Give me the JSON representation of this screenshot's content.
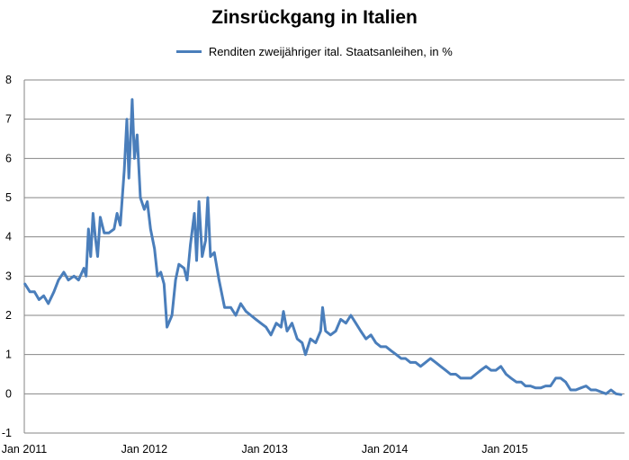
{
  "chart_data": {
    "type": "line",
    "title": "Zinsrückgang in Italien",
    "xlabel": "",
    "ylabel": "",
    "ylim": [
      -1,
      8
    ],
    "xlim": [
      "2011-01",
      "2015-12"
    ],
    "grid": true,
    "legend_position": "top-center",
    "y_ticks": [
      "8",
      "7",
      "6",
      "5",
      "4",
      "3",
      "2",
      "1",
      "0",
      "-1"
    ],
    "x_ticks": [
      "Jan 2011",
      "Jan 2012",
      "Jan 2013",
      "Jan 2014",
      "Jan 2015"
    ],
    "series": [
      {
        "name": "Renditen zweijähriger ital. Staatsanleihen, in %",
        "color": "#4a7ebb",
        "points": [
          [
            "2011-01-03",
            2.8
          ],
          [
            "2011-01-18",
            2.6
          ],
          [
            "2011-02-01",
            2.6
          ],
          [
            "2011-02-15",
            2.4
          ],
          [
            "2011-03-01",
            2.5
          ],
          [
            "2011-03-15",
            2.3
          ],
          [
            "2011-04-01",
            2.6
          ],
          [
            "2011-04-15",
            2.9
          ],
          [
            "2011-05-01",
            3.1
          ],
          [
            "2011-05-15",
            2.9
          ],
          [
            "2011-06-01",
            3.0
          ],
          [
            "2011-06-15",
            2.9
          ],
          [
            "2011-07-01",
            3.2
          ],
          [
            "2011-07-08",
            3.0
          ],
          [
            "2011-07-15",
            4.2
          ],
          [
            "2011-07-22",
            3.5
          ],
          [
            "2011-07-29",
            4.6
          ],
          [
            "2011-08-05",
            4.0
          ],
          [
            "2011-08-12",
            3.5
          ],
          [
            "2011-08-20",
            4.5
          ],
          [
            "2011-09-01",
            4.1
          ],
          [
            "2011-09-15",
            4.1
          ],
          [
            "2011-10-01",
            4.2
          ],
          [
            "2011-10-10",
            4.6
          ],
          [
            "2011-10-20",
            4.3
          ],
          [
            "2011-11-01",
            5.7
          ],
          [
            "2011-11-09",
            7.0
          ],
          [
            "2011-11-15",
            5.5
          ],
          [
            "2011-11-25",
            7.5
          ],
          [
            "2011-12-02",
            6.0
          ],
          [
            "2011-12-10",
            6.6
          ],
          [
            "2011-12-20",
            5.0
          ],
          [
            "2012-01-01",
            4.7
          ],
          [
            "2012-01-10",
            4.9
          ],
          [
            "2012-01-20",
            4.2
          ],
          [
            "2012-02-01",
            3.7
          ],
          [
            "2012-02-10",
            3.0
          ],
          [
            "2012-02-20",
            3.1
          ],
          [
            "2012-03-01",
            2.8
          ],
          [
            "2012-03-10",
            1.7
          ],
          [
            "2012-03-25",
            2.0
          ],
          [
            "2012-04-05",
            2.9
          ],
          [
            "2012-04-15",
            3.3
          ],
          [
            "2012-05-01",
            3.2
          ],
          [
            "2012-05-10",
            2.9
          ],
          [
            "2012-05-20",
            3.8
          ],
          [
            "2012-06-01",
            4.6
          ],
          [
            "2012-06-08",
            3.4
          ],
          [
            "2012-06-15",
            4.9
          ],
          [
            "2012-06-25",
            3.5
          ],
          [
            "2012-07-05",
            3.9
          ],
          [
            "2012-07-12",
            5.0
          ],
          [
            "2012-07-20",
            3.5
          ],
          [
            "2012-08-01",
            3.6
          ],
          [
            "2012-08-15",
            2.9
          ],
          [
            "2012-09-01",
            2.2
          ],
          [
            "2012-09-20",
            2.2
          ],
          [
            "2012-10-05",
            2.0
          ],
          [
            "2012-10-20",
            2.3
          ],
          [
            "2012-11-05",
            2.1
          ],
          [
            "2012-11-20",
            2.0
          ],
          [
            "2012-12-05",
            1.9
          ],
          [
            "2012-12-20",
            1.8
          ],
          [
            "2013-01-05",
            1.7
          ],
          [
            "2013-01-20",
            1.5
          ],
          [
            "2013-02-05",
            1.8
          ],
          [
            "2013-02-20",
            1.7
          ],
          [
            "2013-02-27",
            2.1
          ],
          [
            "2013-03-10",
            1.6
          ],
          [
            "2013-03-25",
            1.8
          ],
          [
            "2013-04-10",
            1.4
          ],
          [
            "2013-04-25",
            1.3
          ],
          [
            "2013-05-05",
            1.0
          ],
          [
            "2013-05-20",
            1.4
          ],
          [
            "2013-06-05",
            1.3
          ],
          [
            "2013-06-20",
            1.6
          ],
          [
            "2013-06-26",
            2.2
          ],
          [
            "2013-07-05",
            1.6
          ],
          [
            "2013-07-20",
            1.5
          ],
          [
            "2013-08-05",
            1.6
          ],
          [
            "2013-08-20",
            1.9
          ],
          [
            "2013-09-05",
            1.8
          ],
          [
            "2013-09-20",
            2.0
          ],
          [
            "2013-10-05",
            1.8
          ],
          [
            "2013-10-20",
            1.6
          ],
          [
            "2013-11-05",
            1.4
          ],
          [
            "2013-11-20",
            1.5
          ],
          [
            "2013-12-05",
            1.3
          ],
          [
            "2013-12-20",
            1.2
          ],
          [
            "2014-01-05",
            1.2
          ],
          [
            "2014-01-20",
            1.1
          ],
          [
            "2014-02-05",
            1.0
          ],
          [
            "2014-02-20",
            0.9
          ],
          [
            "2014-03-05",
            0.9
          ],
          [
            "2014-03-20",
            0.8
          ],
          [
            "2014-04-05",
            0.8
          ],
          [
            "2014-04-20",
            0.7
          ],
          [
            "2014-05-05",
            0.8
          ],
          [
            "2014-05-20",
            0.9
          ],
          [
            "2014-06-05",
            0.8
          ],
          [
            "2014-06-20",
            0.7
          ],
          [
            "2014-07-05",
            0.6
          ],
          [
            "2014-07-20",
            0.5
          ],
          [
            "2014-08-05",
            0.5
          ],
          [
            "2014-08-20",
            0.4
          ],
          [
            "2014-09-05",
            0.4
          ],
          [
            "2014-09-20",
            0.4
          ],
          [
            "2014-10-05",
            0.5
          ],
          [
            "2014-10-20",
            0.6
          ],
          [
            "2014-11-05",
            0.7
          ],
          [
            "2014-11-20",
            0.6
          ],
          [
            "2014-12-05",
            0.6
          ],
          [
            "2014-12-20",
            0.7
          ],
          [
            "2015-01-05",
            0.5
          ],
          [
            "2015-01-20",
            0.4
          ],
          [
            "2015-02-05",
            0.3
          ],
          [
            "2015-02-20",
            0.3
          ],
          [
            "2015-03-05",
            0.2
          ],
          [
            "2015-03-20",
            0.2
          ],
          [
            "2015-04-05",
            0.15
          ],
          [
            "2015-04-20",
            0.15
          ],
          [
            "2015-05-05",
            0.2
          ],
          [
            "2015-05-20",
            0.2
          ],
          [
            "2015-06-05",
            0.4
          ],
          [
            "2015-06-20",
            0.4
          ],
          [
            "2015-07-05",
            0.3
          ],
          [
            "2015-07-20",
            0.1
          ],
          [
            "2015-08-05",
            0.1
          ],
          [
            "2015-08-20",
            0.15
          ],
          [
            "2015-09-05",
            0.2
          ],
          [
            "2015-09-20",
            0.1
          ],
          [
            "2015-10-05",
            0.1
          ],
          [
            "2015-10-20",
            0.05
          ],
          [
            "2015-11-05",
            0.0
          ],
          [
            "2015-11-20",
            0.1
          ],
          [
            "2015-12-05",
            0.0
          ],
          [
            "2015-12-20",
            -0.02
          ]
        ]
      }
    ]
  }
}
